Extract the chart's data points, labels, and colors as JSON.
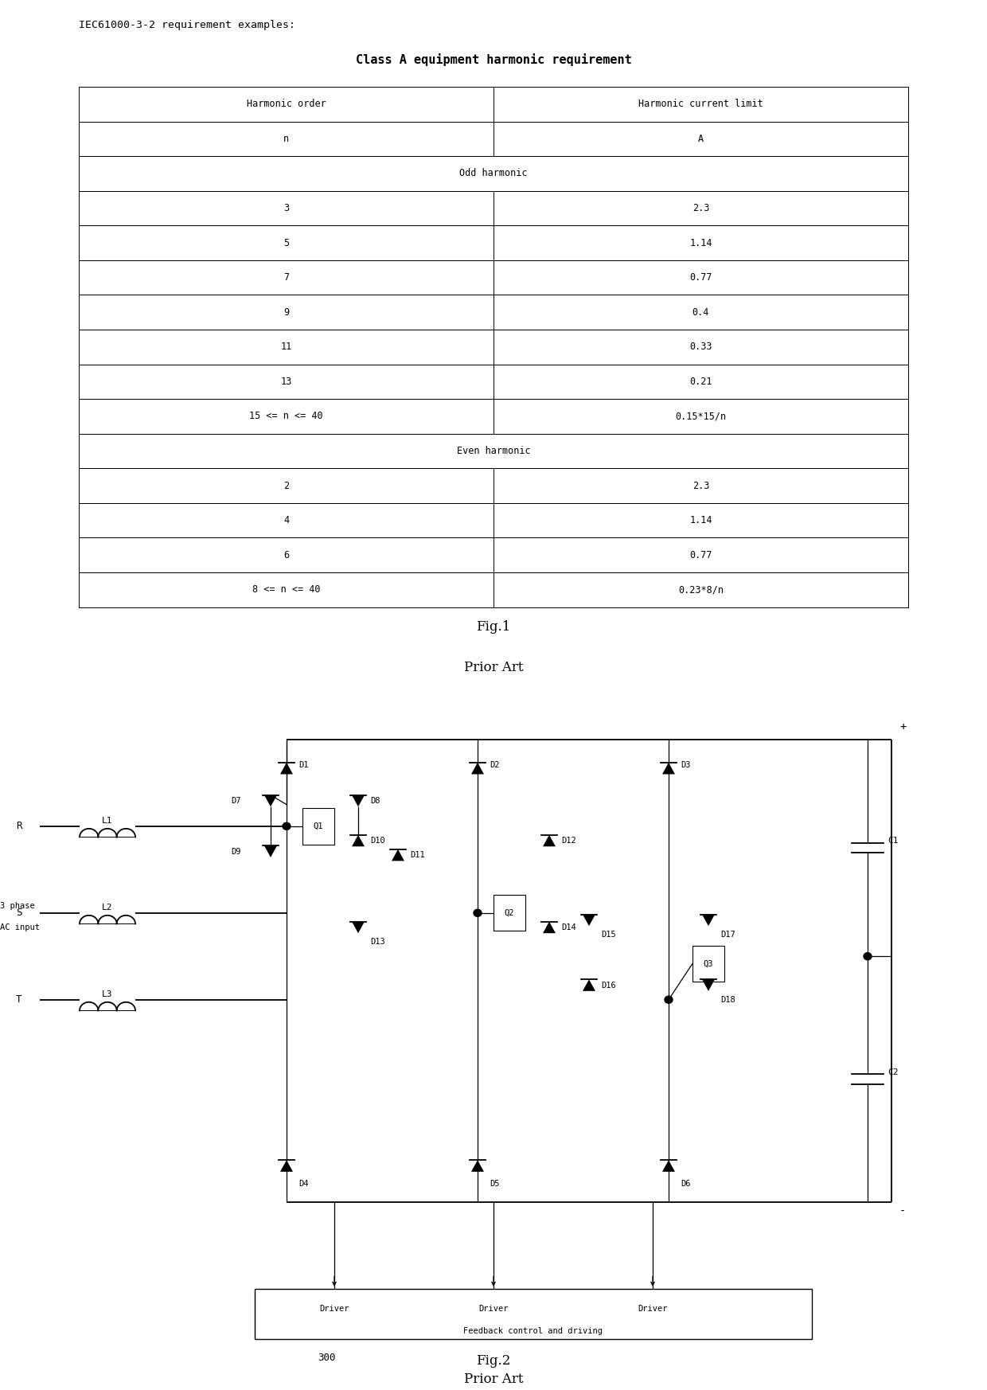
{
  "fig_width": 12.4,
  "fig_height": 17.46,
  "bg_color": "#ffffff",
  "table_title_prefix": "IEC61000-3-2 requirement examples:",
  "table_title": "Class A equipment harmonic requirement",
  "col_headers": [
    "Harmonic order",
    "Harmonic current limit"
  ],
  "col_subheaders": [
    "n",
    "A"
  ],
  "odd_label": "Odd harmonic",
  "even_label": "Even harmonic",
  "odd_rows": [
    [
      "3",
      "2.3"
    ],
    [
      "5",
      "1.14"
    ],
    [
      "7",
      "0.77"
    ],
    [
      "9",
      "0.4"
    ],
    [
      "11",
      "0.33"
    ],
    [
      "13",
      "0.21"
    ],
    [
      "15 <= n <= 40",
      "0.15*15/n"
    ]
  ],
  "even_rows": [
    [
      "2",
      "2.3"
    ],
    [
      "4",
      "1.14"
    ],
    [
      "6",
      "0.77"
    ],
    [
      "8 <= n <= 40",
      "0.23*8/n"
    ]
  ],
  "fig1_label": "Fig.1",
  "fig1_sublabel": "Prior Art",
  "fig2_label": "Fig.2",
  "fig2_sublabel": "Prior Art"
}
